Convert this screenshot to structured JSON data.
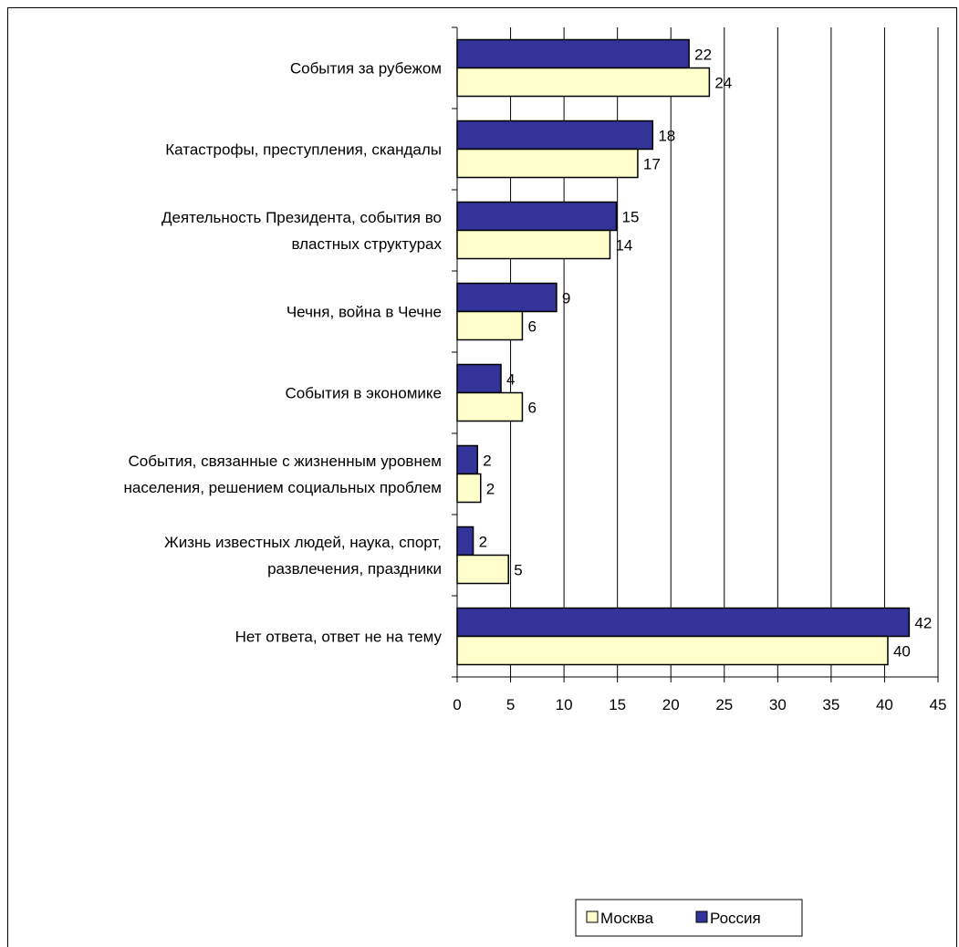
{
  "chart_data": {
    "type": "bar",
    "orientation": "horizontal",
    "categories": [
      [
        "События за рубежом"
      ],
      [
        "Катастрофы, преступления, скандалы"
      ],
      [
        "Деятельность Президента, события во",
        "властных структурах"
      ],
      [
        "Чечня, война в Чечне"
      ],
      [
        "События в экономике"
      ],
      [
        "События, связанные с жизненным уровнем",
        "населения, решением социальных проблем"
      ],
      [
        "Жизнь известных людей, наука, спорт,",
        "развлечения, праздники"
      ],
      [
        "Нет ответа, ответ не на тему"
      ]
    ],
    "series": [
      {
        "name": "Россия",
        "color": "#333399",
        "values": [
          21.7,
          18.3,
          14.9,
          9.3,
          4.1,
          1.9,
          1.5,
          42.3
        ],
        "labels": [
          "22",
          "18",
          "15",
          "9",
          "4",
          "2",
          "2",
          "42"
        ]
      },
      {
        "name": "Москва",
        "color": "#FFFFCC",
        "values": [
          23.6,
          16.9,
          14.3,
          6.1,
          6.1,
          2.2,
          4.8,
          40.3
        ],
        "labels": [
          "24",
          "17",
          "14",
          "6",
          "6",
          "2",
          "5",
          "40"
        ]
      }
    ],
    "xlim": [
      0,
      45
    ],
    "xticks": [
      "0",
      "5",
      "10",
      "15",
      "20",
      "25",
      "30",
      "35",
      "40",
      "45"
    ],
    "grid": "vertical",
    "legend": {
      "position": "bottom",
      "items": [
        "Москва",
        "Россия"
      ]
    }
  }
}
